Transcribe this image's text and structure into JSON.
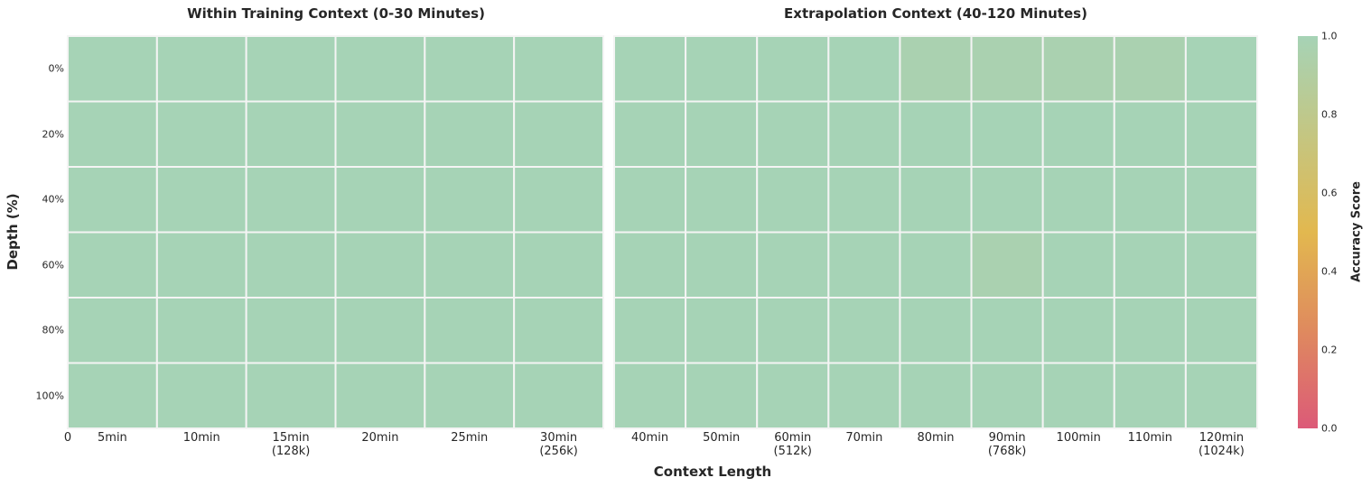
{
  "chart_data": [
    {
      "type": "heatmap",
      "title": "Within Training Context (0-30 Minutes)",
      "x_tick_labels": [
        "5min",
        "10min",
        "15min\n(128k)",
        "20min",
        "25min",
        "30min\n(256k)"
      ],
      "x_origin_label": "0",
      "y_tick_labels": [
        "0%",
        "20%",
        "40%",
        "60%",
        "80%",
        "100%"
      ],
      "values": [
        [
          1,
          1,
          1,
          1,
          1,
          1
        ],
        [
          1,
          1,
          1,
          1,
          1,
          1
        ],
        [
          1,
          1,
          1,
          1,
          1,
          1
        ],
        [
          1,
          1,
          1,
          1,
          1,
          1
        ],
        [
          1,
          1,
          1,
          1,
          1,
          1
        ],
        [
          1,
          1,
          1,
          1,
          1,
          1
        ]
      ]
    },
    {
      "type": "heatmap",
      "title": "Extrapolation Context (40-120 Minutes)",
      "x_tick_labels": [
        "40min",
        "50min",
        "60min\n(512k)",
        "70min",
        "80min",
        "90min\n(768k)",
        "100min",
        "110min",
        "120min\n(1024k)"
      ],
      "y_tick_labels": [
        "0%",
        "20%",
        "40%",
        "60%",
        "80%",
        "100%"
      ],
      "values": [
        [
          1,
          1,
          1,
          1,
          0.97,
          0.97,
          0.97,
          0.97,
          1
        ],
        [
          1,
          1,
          1,
          1,
          1,
          1,
          1,
          1,
          1
        ],
        [
          1,
          1,
          1,
          1,
          1,
          1,
          1,
          1,
          1
        ],
        [
          1,
          1,
          1,
          1,
          1,
          0.97,
          1,
          1,
          1
        ],
        [
          1,
          1,
          1,
          1,
          1,
          1,
          1,
          1,
          1
        ],
        [
          1,
          1,
          1,
          1,
          1,
          1,
          1,
          1,
          1
        ]
      ]
    }
  ],
  "shared": {
    "xlabel": "Context Length",
    "ylabel": "Depth (%)",
    "colorbar": {
      "label": "Accuracy Score",
      "range": [
        0,
        1
      ],
      "ticks": [
        "0.0",
        "0.2",
        "0.4",
        "0.6",
        "0.8",
        "1.0"
      ],
      "colors": [
        "#dc5a78",
        "#df8a5e",
        "#e2b84f",
        "#c4c682",
        "#a6d3b6"
      ]
    }
  }
}
